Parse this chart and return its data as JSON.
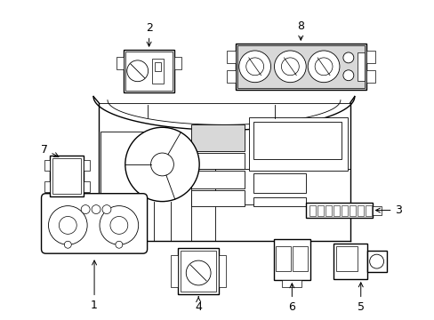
{
  "background_color": "#ffffff",
  "line_color": "#000000",
  "gray_fill": "#d8d8d8",
  "fig_width": 4.89,
  "fig_height": 3.6,
  "dpi": 100
}
